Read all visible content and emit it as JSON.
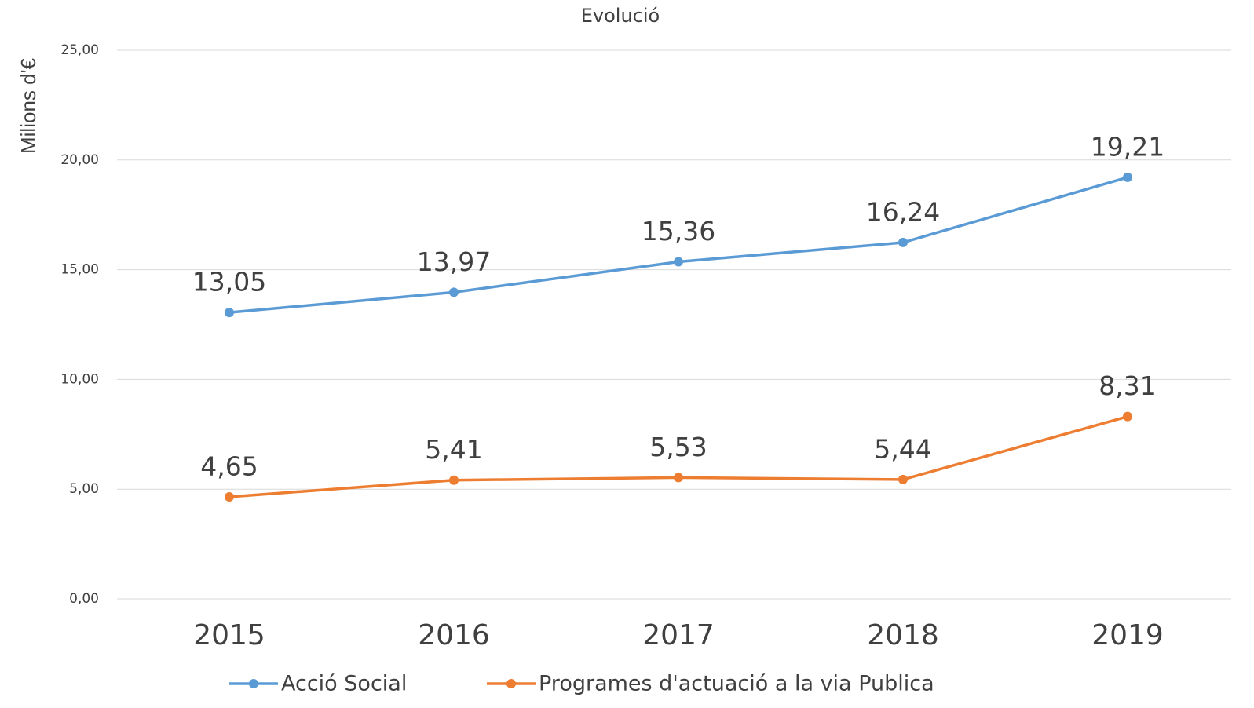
{
  "chart_data": {
    "type": "line",
    "title": "Evolució",
    "y_label": "Milions d'€",
    "categories": [
      "2015",
      "2016",
      "2017",
      "2018",
      "2019"
    ],
    "series": [
      {
        "name": "Acció Social",
        "color": "#5b9bd5",
        "values": [
          13.05,
          13.97,
          15.36,
          16.24,
          19.21
        ],
        "value_labels": [
          "13,05",
          "13,97",
          "15,36",
          "16,24",
          "19,21"
        ]
      },
      {
        "name": "Programes d'actuació a la via Publica",
        "color": "#ed7d31",
        "values": [
          4.65,
          5.41,
          5.53,
          5.44,
          8.31
        ],
        "value_labels": [
          "4,65",
          "5,41",
          "5,53",
          "5,44",
          "8,31"
        ]
      }
    ],
    "ylim": [
      0,
      25
    ],
    "yticks": [
      {
        "value": 0,
        "label": "0,00"
      },
      {
        "value": 5,
        "label": "5,00"
      },
      {
        "value": 10,
        "label": "10,00"
      },
      {
        "value": 15,
        "label": "15,00"
      },
      {
        "value": 20,
        "label": "20,00"
      },
      {
        "value": 25,
        "label": "25,00"
      }
    ],
    "grid": true,
    "legend": "bottom"
  }
}
